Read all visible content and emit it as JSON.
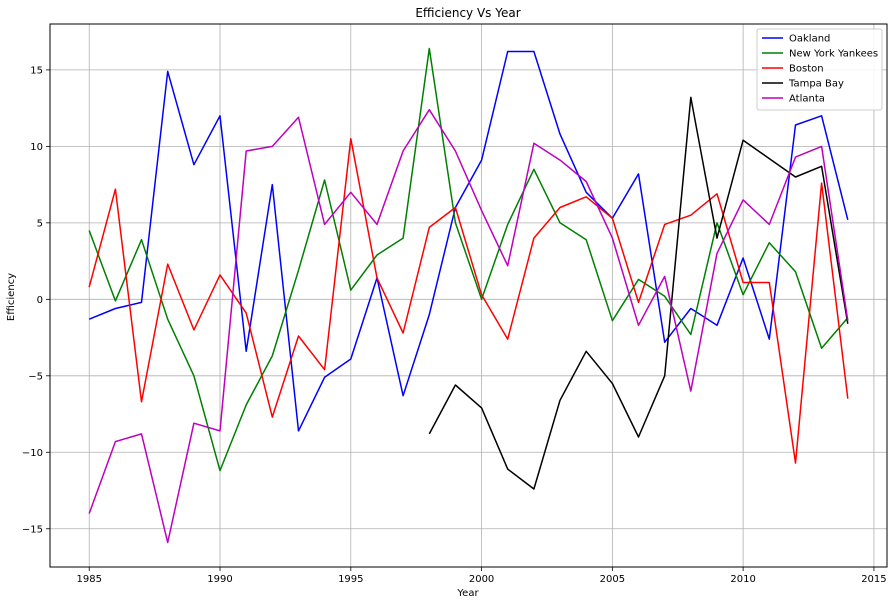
{
  "chart_data": {
    "type": "line",
    "title": "Efficiency Vs Year",
    "xlabel": "Year",
    "ylabel": "Efficiency",
    "xlim": [
      1983.5,
      2015.5
    ],
    "ylim": [
      -17.5,
      18
    ],
    "xticks": [
      1985,
      1990,
      1995,
      2000,
      2005,
      2010,
      2015
    ],
    "yticks": [
      -15,
      -10,
      -5,
      0,
      5,
      10,
      15
    ],
    "grid": true,
    "legend_position": "top-right",
    "x": [
      1985,
      1986,
      1987,
      1988,
      1989,
      1990,
      1991,
      1992,
      1993,
      1994,
      1995,
      1996,
      1997,
      1998,
      1999,
      2000,
      2001,
      2002,
      2003,
      2004,
      2005,
      2006,
      2007,
      2008,
      2009,
      2010,
      2011,
      2012,
      2013,
      2014
    ],
    "series": [
      {
        "name": "Oakland",
        "color": "#0000ff",
        "values": [
          -1.3,
          -0.6,
          -0.2,
          14.9,
          8.8,
          12.0,
          -3.4,
          7.5,
          -8.6,
          -5.1,
          -3.9,
          1.4,
          -6.3,
          -1.0,
          6.0,
          9.1,
          16.2,
          16.2,
          10.8,
          7.0,
          5.3,
          8.2,
          -2.8,
          -0.6,
          -1.7,
          2.7,
          -2.6,
          11.4,
          12.0,
          5.2
        ]
      },
      {
        "name": "New York Yankees",
        "color": "#008000",
        "values": [
          4.5,
          -0.1,
          3.9,
          -1.3,
          -5.0,
          -11.2,
          -6.9,
          -3.7,
          1.9,
          7.8,
          0.6,
          2.9,
          4.0,
          16.4,
          5.0,
          0.0,
          4.9,
          8.5,
          5.0,
          3.9,
          -1.4,
          1.3,
          0.2,
          -2.3,
          5.0,
          0.3,
          3.7,
          1.8,
          -3.2,
          -1.2
        ]
      },
      {
        "name": "Boston",
        "color": "#ff0000",
        "values": [
          0.8,
          7.2,
          -6.7,
          2.3,
          -2.0,
          1.6,
          -0.9,
          -7.7,
          -2.4,
          -4.6,
          10.5,
          1.4,
          -2.2,
          4.7,
          6.0,
          0.3,
          -2.6,
          4.0,
          6.0,
          6.7,
          5.3,
          -0.2,
          4.9,
          5.5,
          6.9,
          1.1,
          1.1,
          -10.7,
          7.6,
          -6.5
        ]
      },
      {
        "name": "Tampa Bay",
        "color": "#000000",
        "values": [
          null,
          null,
          null,
          null,
          null,
          null,
          null,
          null,
          null,
          null,
          null,
          null,
          null,
          -8.8,
          -5.6,
          -7.1,
          -11.1,
          -12.4,
          -6.6,
          -3.4,
          -5.5,
          -9.0,
          -5.0,
          13.2,
          4.0,
          10.4,
          9.2,
          8.0,
          8.7,
          -1.6
        ]
      },
      {
        "name": "Atlanta",
        "color": "#bf00bf",
        "values": [
          -14.0,
          -9.3,
          -8.8,
          -15.9,
          -8.1,
          -8.6,
          9.7,
          10.0,
          11.9,
          4.9,
          7.0,
          4.9,
          9.7,
          12.4,
          9.7,
          5.8,
          2.2,
          10.2,
          9.1,
          7.7,
          4.0,
          -1.7,
          1.5,
          -6.0,
          3.0,
          6.5,
          4.9,
          9.3,
          10.0,
          -1.4
        ]
      }
    ]
  }
}
